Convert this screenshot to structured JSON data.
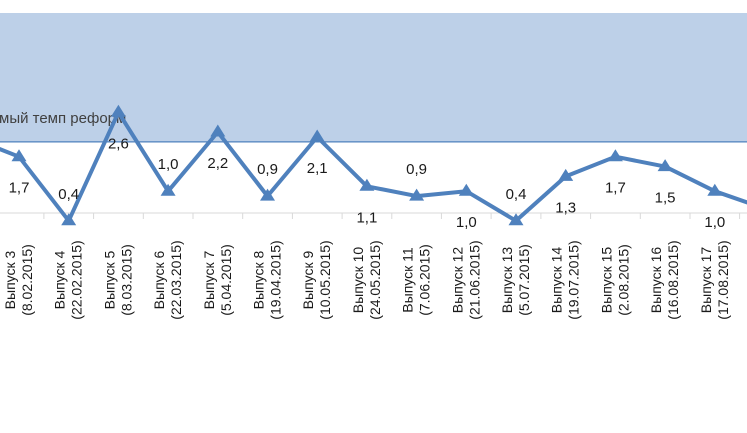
{
  "chart_data": {
    "type": "line",
    "series": [
      {
        "name": "Темп реформ",
        "values": [
          1.7,
          0.4,
          2.6,
          1.0,
          2.2,
          0.9,
          2.1,
          1.1,
          0.9,
          1.0,
          0.4,
          1.3,
          1.7,
          1.5,
          1.0
        ],
        "labels": [
          "1,7",
          "0,4",
          "2,6",
          "1,0",
          "2,2",
          "0,9",
          "2,1",
          "1,1",
          "0,9",
          "1,0",
          "0,4",
          "1,3",
          "1,7",
          "1,5",
          "1,0"
        ]
      }
    ],
    "categories": [
      [
        "Выпуск 3",
        "(8.02.2015)"
      ],
      [
        "Выпуск 4",
        "(22.02.2015)"
      ],
      [
        "Выпуск 5",
        "(8.03.2015)"
      ],
      [
        "Выпуск 6",
        "(22.03.2015)"
      ],
      [
        "Выпуск 7",
        "(5.04.2015)"
      ],
      [
        "Выпуск 8",
        "(19.04.2015)"
      ],
      [
        "Выпуск 9",
        "(10.05.2015)"
      ],
      [
        "Выпуск 10",
        "(24.05.2015)"
      ],
      [
        "Выпуск 11",
        "(7.06.2015)"
      ],
      [
        "Выпуск 12",
        "(21.06.2015)"
      ],
      [
        "Выпуск 13",
        "(5.07.2015)"
      ],
      [
        "Выпуск 14",
        "(19.07.2015)"
      ],
      [
        "Выпуск 15",
        "(2.08.2015)"
      ],
      [
        "Выпуск 16",
        "(16.08.2015)"
      ],
      [
        "Выпуск 17",
        "(17.08.2015)"
      ]
    ],
    "reference_band": {
      "value": 2.0,
      "label": "мый темп реформ"
    },
    "ylim": [
      0,
      4.5
    ],
    "colors": {
      "line": "#4f81bd",
      "band": "#bdd0e8"
    }
  }
}
